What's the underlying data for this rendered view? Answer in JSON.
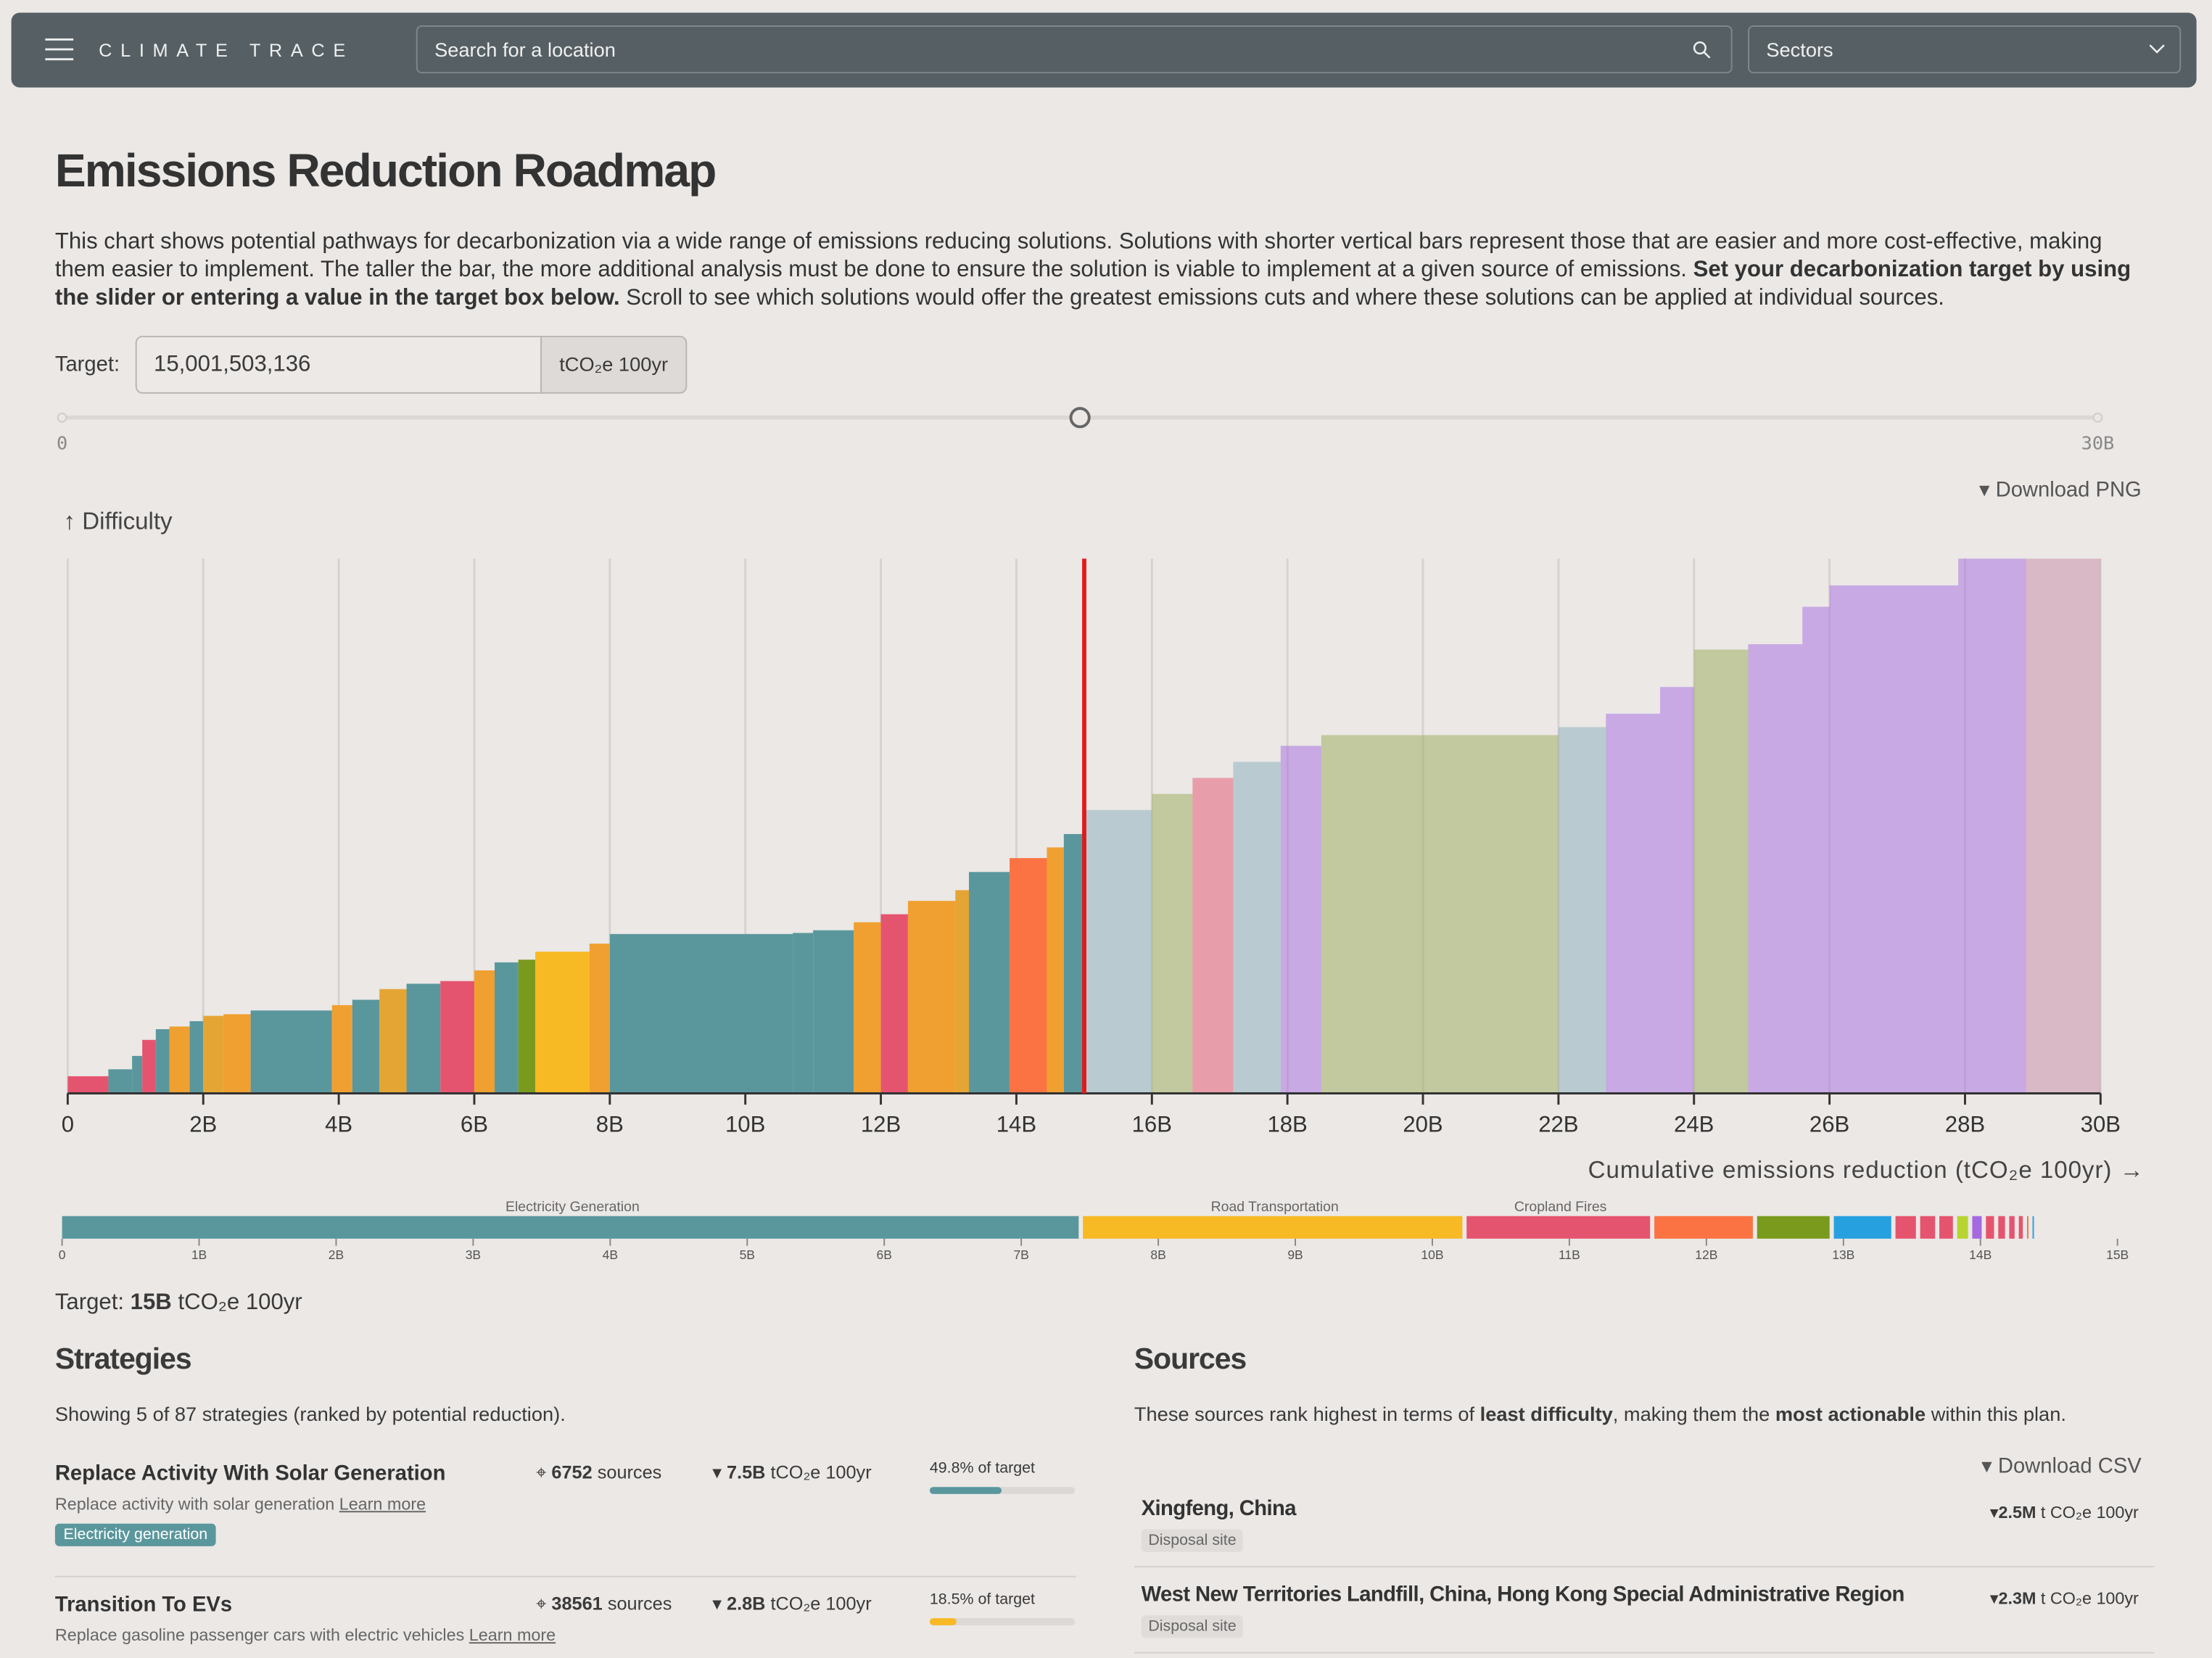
{
  "header": {
    "brand": "CLIMATE TRACE",
    "search_placeholder": "Search for a location",
    "sectors": "Sectors"
  },
  "page": {
    "title": "Emissions Reduction Roadmap",
    "intro": [
      "This chart shows potential pathways for decarbonization via a wide range of emissions reducing solutions. Solutions with shorter vertical bars represent those that are easier and more cost-effective, making them easier to implement. The taller the bar, the more additional analysis must be done to ensure the solution is viable to implement at a given source of emissions. ",
      "Set your decarbonization target by using the slider or entering a value in the target box below.",
      " Scroll to see which solutions would offer the greatest emissions cuts and where these solutions can be applied at individual sources."
    ],
    "target_label": "Target:",
    "target": {
      "value": 15001503136,
      "label": "15,001,503,136"
    },
    "target_unit": "tCO₂e 100yr"
  },
  "slider": {
    "min": 0,
    "max": {
      "value": 30000000000,
      "label": "30B"
    }
  },
  "roadmap": {
    "download": "Download PNG",
    "y_label": "↑ Difficulty",
    "x_label": "Cumulative emissions reduction (tCO₂e 100yr) →",
    "xlim": [
      0,
      30000000000
    ],
    "ylim": [
      0,
      100
    ],
    "grid": true,
    "target_color": "#e01b1b",
    "xticks": [
      0,
      {
        "value": 2000000000,
        "label": "2B"
      },
      {
        "value": 4000000000,
        "label": "4B"
      },
      {
        "value": 6000000000,
        "label": "6B"
      },
      {
        "value": 8000000000,
        "label": "8B"
      },
      {
        "value": 10000000000,
        "label": "10B"
      },
      {
        "value": 12000000000,
        "label": "12B"
      },
      {
        "value": 14000000000,
        "label": "14B"
      },
      {
        "value": 16000000000,
        "label": "16B"
      },
      {
        "value": 18000000000,
        "label": "18B"
      },
      {
        "value": 20000000000,
        "label": "20B"
      },
      {
        "value": 22000000000,
        "label": "22B"
      },
      {
        "value": 24000000000,
        "label": "24B"
      },
      {
        "value": 26000000000,
        "label": "26B"
      },
      {
        "value": 28000000000,
        "label": "28B"
      },
      {
        "value": 30000000000,
        "label": "30B"
      }
    ],
    "segments": [
      {
        "reduction": 600000000,
        "difficulty": 3.2,
        "color": "#e5546e"
      },
      {
        "reduction": 350000000,
        "difficulty": 4.5,
        "color": "#5a979d"
      },
      {
        "reduction": 150000000,
        "difficulty": 7,
        "color": "#5a979d"
      },
      {
        "reduction": 200000000,
        "difficulty": 10,
        "color": "#e5546e"
      },
      {
        "reduction": 200000000,
        "difficulty": 12,
        "color": "#5a979d"
      },
      {
        "reduction": 300000000,
        "difficulty": 12.5,
        "color": "#f0a030"
      },
      {
        "reduction": 200000000,
        "difficulty": 13.5,
        "color": "#5a979d"
      },
      {
        "reduction": 300000000,
        "difficulty": 14.5,
        "color": "#e5a535"
      },
      {
        "reduction": 400000000,
        "difficulty": 14.8,
        "color": "#f0a030"
      },
      {
        "reduction": 1200000000,
        "difficulty": 15.5,
        "color": "#5a979d"
      },
      {
        "reduction": 300000000,
        "difficulty": 16.5,
        "color": "#f0a030"
      },
      {
        "reduction": 400000000,
        "difficulty": 17.5,
        "color": "#5a979d"
      },
      {
        "reduction": 400000000,
        "difficulty": 19.5,
        "color": "#e5a535"
      },
      {
        "reduction": 500000000,
        "difficulty": 20.5,
        "color": "#5a979d"
      },
      {
        "reduction": 500000000,
        "difficulty": 21,
        "color": "#e5546e"
      },
      {
        "reduction": 300000000,
        "difficulty": 23,
        "color": "#f0a030"
      },
      {
        "reduction": 350000000,
        "difficulty": 24.5,
        "color": "#5a979d"
      },
      {
        "reduction": 250000000,
        "difficulty": 25,
        "color": "#7a9a1e"
      },
      {
        "reduction": 800000000,
        "difficulty": 26.5,
        "color": "#f7b924"
      },
      {
        "reduction": 300000000,
        "difficulty": 28,
        "color": "#f0a030"
      },
      {
        "reduction": 2700000000,
        "difficulty": 29.8,
        "color": "#5a979d"
      },
      {
        "reduction": 300000000,
        "difficulty": 30,
        "color": "#5a979d"
      },
      {
        "reduction": 600000000,
        "difficulty": 30.5,
        "color": "#5a979d"
      },
      {
        "reduction": 400000000,
        "difficulty": 32,
        "color": "#f0a030"
      },
      {
        "reduction": 400000000,
        "difficulty": 33.5,
        "color": "#e5546e"
      },
      {
        "reduction": 700000000,
        "difficulty": 36,
        "color": "#f0a030"
      },
      {
        "reduction": 200000000,
        "difficulty": 38,
        "color": "#e5a535"
      },
      {
        "reduction": 600000000,
        "difficulty": 41.4,
        "color": "#5a979d"
      },
      {
        "reduction": 550000000,
        "difficulty": 44,
        "color": "#fb7343"
      },
      {
        "reduction": 250000000,
        "difficulty": 46,
        "color": "#f0a030"
      },
      {
        "reduction": 300000000,
        "difficulty": 48.5,
        "color": "#5a979d"
      },
      {
        "reduction": 1000000000,
        "difficulty": 53,
        "color": "#87aebc"
      },
      {
        "reduction": 600000000,
        "difficulty": 56,
        "color": "#9aaa55"
      },
      {
        "reduction": 600000000,
        "difficulty": 59,
        "color": "#e5546e"
      },
      {
        "reduction": 700000000,
        "difficulty": 62,
        "color": "#87aebc"
      },
      {
        "reduction": 600000000,
        "difficulty": 65,
        "color": "#a66ae0"
      },
      {
        "reduction": 3500000000,
        "difficulty": 67,
        "color": "#9aaa55"
      },
      {
        "reduction": 700000000,
        "difficulty": 68.5,
        "color": "#87aebc"
      },
      {
        "reduction": 800000000,
        "difficulty": 71,
        "color": "#a66ae0"
      },
      {
        "reduction": 500000000,
        "difficulty": 76,
        "color": "#a66ae0"
      },
      {
        "reduction": 800000000,
        "difficulty": 83,
        "color": "#9aaa55"
      },
      {
        "reduction": 800000000,
        "difficulty": 84,
        "color": "#a66ae0"
      },
      {
        "reduction": 400000000,
        "difficulty": 91,
        "color": "#a66ae0"
      },
      {
        "reduction": 1900000000,
        "difficulty": 95,
        "color": "#a66ae0"
      },
      {
        "reduction": 1000000000,
        "difficulty": 100,
        "color": "#a66ae0"
      },
      {
        "reduction": 1100000000,
        "difficulty": 100,
        "color": "#c98aa8"
      }
    ]
  },
  "sector_bar": {
    "xlim": [
      0,
      15000000000
    ],
    "xticks": [
      0,
      {
        "value": 1000000000,
        "label": "1B"
      },
      {
        "value": 2000000000,
        "label": "2B"
      },
      {
        "value": 3000000000,
        "label": "3B"
      },
      {
        "value": 4000000000,
        "label": "4B"
      },
      {
        "value": 5000000000,
        "label": "5B"
      },
      {
        "value": 6000000000,
        "label": "6B"
      },
      {
        "value": 7000000000,
        "label": "7B"
      },
      {
        "value": 8000000000,
        "label": "8B"
      },
      {
        "value": 9000000000,
        "label": "9B"
      },
      {
        "value": 10000000000,
        "label": "10B"
      },
      {
        "value": 11000000000,
        "label": "11B"
      },
      {
        "value": 12000000000,
        "label": "12B"
      },
      {
        "value": 13000000000,
        "label": "13B"
      },
      {
        "value": 14000000000,
        "label": "14B"
      },
      {
        "value": 15000000000,
        "label": "15B"
      }
    ],
    "segments": [
      {
        "name": "Electricity Generation",
        "value": 7450000000,
        "color": "#5a979d"
      },
      {
        "name": "Road Transportation",
        "value": 2800000000,
        "color": "#f7b924"
      },
      {
        "name": "Cropland Fires",
        "value": 1370000000,
        "color": "#e5546e"
      },
      {
        "value": 750000000,
        "color": "#fb7343"
      },
      {
        "value": 560000000,
        "color": "#7a9a1e"
      },
      {
        "value": 450000000,
        "color": "#27a0e0"
      },
      {
        "value": 180000000,
        "color": "#e5546e"
      },
      {
        "value": 140000000,
        "color": "#e5546e"
      },
      {
        "value": 130000000,
        "color": "#e5546e"
      },
      {
        "value": 110000000,
        "color": "#b8d430"
      },
      {
        "value": 100000000,
        "color": "#a66ae0"
      },
      {
        "value": 90000000,
        "color": "#e5546e"
      },
      {
        "value": 80000000,
        "color": "#e5546e"
      },
      {
        "value": 70000000,
        "color": "#e5546e"
      },
      {
        "value": 60000000,
        "color": "#e5546e"
      },
      {
        "value": 40000000,
        "color": "#fb7343"
      },
      {
        "value": 30000000,
        "color": "#27a0e0"
      }
    ]
  },
  "summary": {
    "prefix": "Target:",
    "value": "15B",
    "unit": "tCO₂e 100yr"
  },
  "strategies": {
    "title": "Strategies",
    "note": "Showing 5 of 87 strategies (ranked by potential reduction).",
    "items": [
      {
        "name": "Replace Activity With Solar Generation",
        "description": "Replace activity with solar generation",
        "link": "Learn more",
        "tag": "Electricity generation",
        "sources": 6752,
        "sources_label": "sources",
        "reduction": "7.5B",
        "unit": "tCO₂e 100yr",
        "share": {
          "value": 49.8,
          "label": "49.8% of target"
        },
        "color": "#5a979d"
      },
      {
        "name": "Transition To EVs",
        "description": "Replace gasoline passenger cars with electric vehicles",
        "link": "Learn more",
        "sources": 38561,
        "sources_label": "sources",
        "reduction": "2.8B",
        "unit": "tCO₂e 100yr",
        "share": {
          "value": 18.5,
          "label": "18.5% of target"
        },
        "color": "#f7b924"
      }
    ]
  },
  "sources": {
    "title": "Sources",
    "intro": [
      "These sources rank highest in terms of ",
      "least difficulty",
      ", making them the ",
      "most actionable",
      " within this plan."
    ],
    "download": "Download CSV",
    "items": [
      {
        "name": "Xingfeng, China",
        "type": "Disposal site",
        "amount": "2.5M",
        "unit": "t CO₂e 100yr"
      },
      {
        "name": "West New Territories Landfill, China, Hong Kong Special Administrative Region",
        "type": "Disposal site",
        "amount": "2.3M",
        "unit": "t CO₂e 100yr"
      }
    ]
  }
}
